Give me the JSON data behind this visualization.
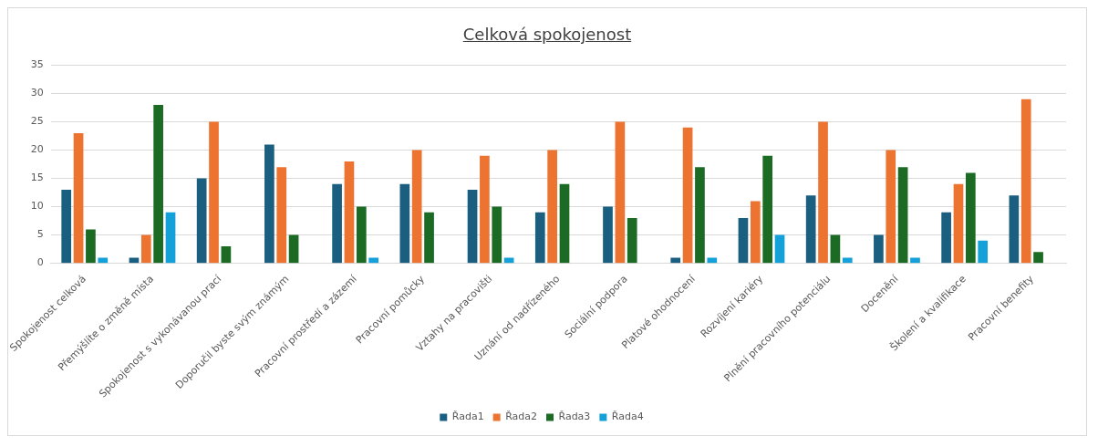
{
  "chart_data": {
    "type": "bar",
    "title": "Celková spokojenost",
    "categories": [
      "Spokojenost celková",
      "Přemýšlíte o změně místa",
      "Spokojenost s vykonávanou prací",
      "Doporučil byste svým známým",
      "Pracovní prostředí a zázemí",
      "Pracovní pomůcky",
      "Vztahy na pracovišti",
      "Uznání od nadřízeného",
      "Sociální podpora",
      "Platové ohodnocení",
      "Rozvíjení kariéry",
      "Plnění pracovního potenciálu",
      "Docenění",
      "Školení a kvalifikace",
      "Pracovní benefity"
    ],
    "series": [
      {
        "name": "Řada1",
        "color": "#1a5e80",
        "values": [
          13,
          1,
          15,
          21,
          14,
          14,
          13,
          9,
          10,
          1,
          8,
          12,
          5,
          9,
          12
        ]
      },
      {
        "name": "Řada2",
        "color": "#ed7330",
        "values": [
          23,
          5,
          25,
          17,
          18,
          20,
          19,
          20,
          25,
          24,
          11,
          25,
          20,
          14,
          29
        ]
      },
      {
        "name": "Řada3",
        "color": "#1c6b25",
        "values": [
          6,
          28,
          3,
          5,
          10,
          9,
          10,
          14,
          8,
          17,
          19,
          5,
          17,
          16,
          2
        ]
      },
      {
        "name": "Řada4",
        "color": "#14a0d8",
        "values": [
          1,
          9,
          0,
          0,
          1,
          0,
          1,
          0,
          0,
          1,
          5,
          1,
          1,
          4,
          0
        ]
      }
    ],
    "ylim": [
      0,
      35
    ],
    "yticks": [
      0,
      5,
      10,
      15,
      20,
      25,
      30,
      35
    ],
    "grid": "y",
    "legend": "bottom"
  }
}
